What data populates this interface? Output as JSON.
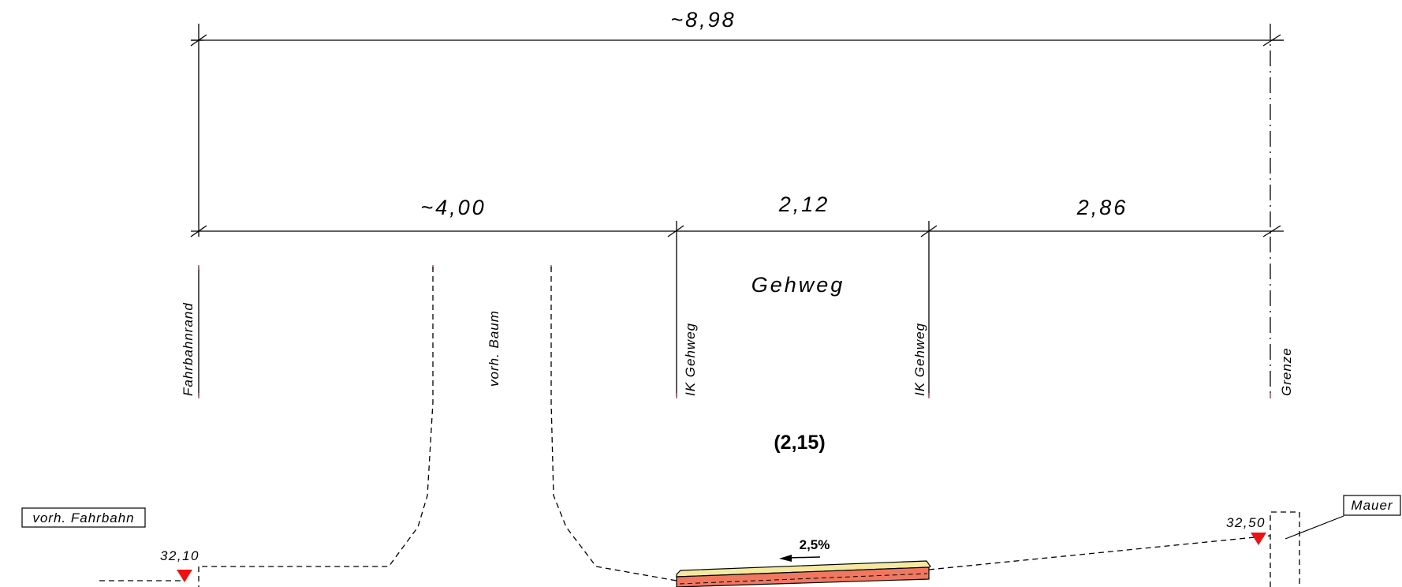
{
  "dimensions": {
    "total": "~8,98",
    "left": "~4,00",
    "middle": "2,12",
    "right": "2,86"
  },
  "area_label": "Gehweg",
  "vertical_labels": {
    "fahrbahnrand": "Fahrbahnrand",
    "baum": "vorh. Baum",
    "ik_gehweg_1": "IK Gehweg",
    "ik_gehweg_2": "IK Gehweg",
    "grenze": "Grenze"
  },
  "depth_label": "(2,15)",
  "callouts": {
    "fahrbahn": "vorh. Fahrbahn",
    "mauer": "Mauer"
  },
  "elevations": {
    "left": "32,10",
    "right": "32,50"
  },
  "slope": "2,5%",
  "colors": {
    "marker": "#ee1111",
    "surface_top": "#f3e9a0",
    "surface_base": "#f07860",
    "tick_accent": "#a0306a"
  }
}
